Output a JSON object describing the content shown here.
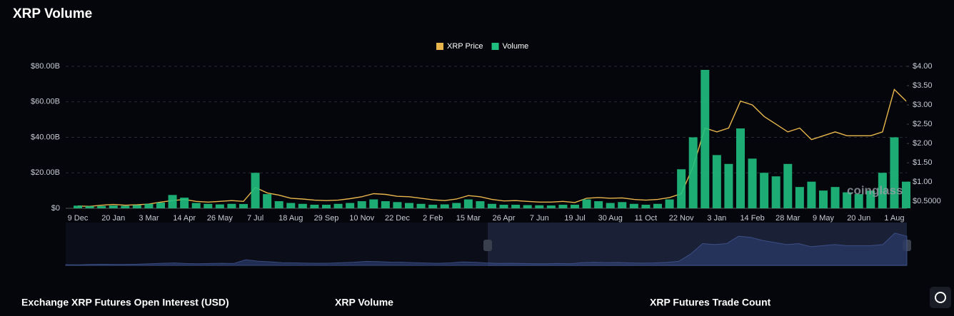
{
  "chart_data": {
    "type": "bar-line",
    "title": "XRP Volume",
    "categories": [
      "9 Dec",
      null,
      null,
      "20 Jan",
      null,
      null,
      "3 Mar",
      null,
      null,
      "14 Apr",
      null,
      null,
      "26 May",
      null,
      null,
      "7 Jul",
      null,
      null,
      "18 Aug",
      null,
      null,
      "29 Sep",
      null,
      null,
      "10 Nov",
      null,
      null,
      "22 Dec",
      null,
      null,
      "2 Feb",
      null,
      null,
      "15 Mar",
      null,
      null,
      "26 Apr",
      null,
      null,
      "7 Jun",
      null,
      null,
      "19 Jul",
      null,
      null,
      "30 Aug",
      null,
      null,
      "11 Oct",
      null,
      null,
      "22 Nov",
      null,
      null,
      "3 Jan",
      null,
      null,
      "14 Feb",
      null,
      null,
      "28 Mar",
      null,
      null,
      "9 May",
      null,
      null,
      "20 Jun",
      null,
      null,
      "1 Aug",
      null
    ],
    "series": [
      {
        "name": "XRP Price",
        "color": "#e8b64c",
        "kind": "line",
        "axis": "y2",
        "values": [
          0.38,
          0.37,
          0.4,
          0.42,
          0.4,
          0.41,
          0.43,
          0.48,
          0.52,
          0.55,
          0.5,
          0.48,
          0.5,
          0.52,
          0.5,
          0.86,
          0.72,
          0.66,
          0.58,
          0.56,
          0.53,
          0.52,
          0.53,
          0.57,
          0.62,
          0.7,
          0.68,
          0.63,
          0.62,
          0.58,
          0.54,
          0.52,
          0.56,
          0.65,
          0.62,
          0.55,
          0.51,
          0.52,
          0.5,
          0.48,
          0.48,
          0.5,
          0.47,
          0.58,
          0.6,
          0.58,
          0.59,
          0.55,
          0.53,
          0.55,
          0.6,
          0.7,
          1.4,
          2.4,
          2.3,
          2.4,
          3.1,
          3.0,
          2.7,
          2.5,
          2.3,
          2.4,
          2.1,
          2.2,
          2.3,
          2.2,
          2.2,
          2.2,
          2.3,
          3.4,
          3.1
        ]
      },
      {
        "name": "Volume",
        "color": "#1fbf7f",
        "kind": "bar",
        "values": [
          1.5,
          1.2,
          1.3,
          1.6,
          1.4,
          1.8,
          2.5,
          3.2,
          7.5,
          6,
          3,
          2.5,
          2.2,
          2.5,
          2.4,
          20,
          8,
          4,
          3,
          2.5,
          2,
          2,
          2.5,
          3,
          4,
          5,
          4,
          3.5,
          3,
          2.5,
          2,
          2.2,
          3,
          5,
          4,
          2.5,
          2,
          2,
          1.8,
          1.7,
          1.6,
          2,
          2,
          5,
          4,
          3,
          3.5,
          2.5,
          2,
          2.5,
          5,
          22,
          40,
          78,
          30,
          25,
          45,
          28,
          20,
          18,
          25,
          12,
          15,
          10,
          12,
          9,
          8,
          10,
          20,
          40,
          15
        ]
      }
    ],
    "ylim": [
      0,
      80
    ],
    "yticks": [
      {
        "value": 0,
        "label": "$0"
      },
      {
        "value": 20,
        "label": "$20.00B"
      },
      {
        "value": 40,
        "label": "$40.00B"
      },
      {
        "value": 60,
        "label": "$60.00B"
      },
      {
        "value": 80,
        "label": "$80.00B"
      }
    ],
    "y2lim": [
      0.32,
      4.0
    ],
    "y2ticks": [
      {
        "value": 0.5,
        "label": "$0.5000"
      },
      {
        "value": 1,
        "label": "$1.00"
      },
      {
        "value": 1.5,
        "label": "$1.50"
      },
      {
        "value": 2,
        "label": "$2.00"
      },
      {
        "value": 2.5,
        "label": "$2.50"
      },
      {
        "value": 3,
        "label": "$3.00"
      },
      {
        "value": 3.5,
        "label": "$3.50"
      },
      {
        "value": 4,
        "label": "$4.00"
      }
    ],
    "grid": true,
    "legend": "top",
    "watermark": "coinglass",
    "tabs": [
      "Exchange XRP Futures Open Interest (USD)",
      "XRP Volume",
      "XRP Futures Trade Count"
    ]
  }
}
